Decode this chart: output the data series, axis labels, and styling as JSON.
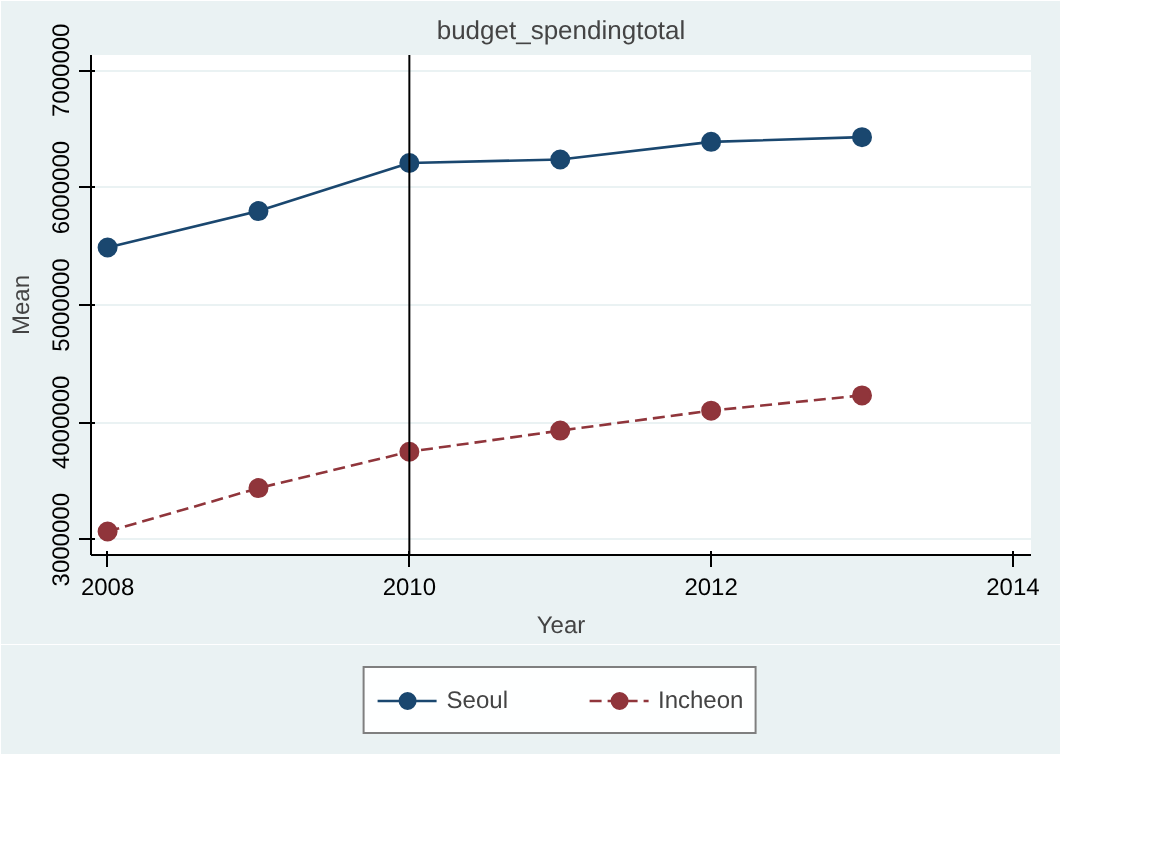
{
  "chart_data": {
    "type": "line",
    "title": "budget_spendingtotal",
    "xlabel": "Year",
    "ylabel": "Mean",
    "x": [
      2008,
      2009,
      2010,
      2011,
      2012,
      2013
    ],
    "series": [
      {
        "name": "Seoul",
        "color": "#1a476f",
        "line_style": "solid",
        "values": [
          5490000,
          5800000,
          6210000,
          6240000,
          6390000,
          6430000
        ]
      },
      {
        "name": "Incheon",
        "color": "#90353b",
        "line_style": "dashed",
        "values": [
          3070000,
          3440000,
          3750000,
          3930000,
          4100000,
          4230000
        ]
      }
    ],
    "xlim": [
      2007.89,
      2014.12
    ],
    "xticks": [
      2008,
      2010,
      2012,
      2014
    ],
    "ylim": [
      2870000,
      7130000
    ],
    "yticks": [
      3000000,
      4000000,
      5000000,
      6000000,
      7000000
    ],
    "ref_lines": [
      {
        "axis": "x",
        "value": 2010,
        "color": "#000000"
      }
    ],
    "grid": "y",
    "legend": "bottom",
    "marker": "circle"
  }
}
